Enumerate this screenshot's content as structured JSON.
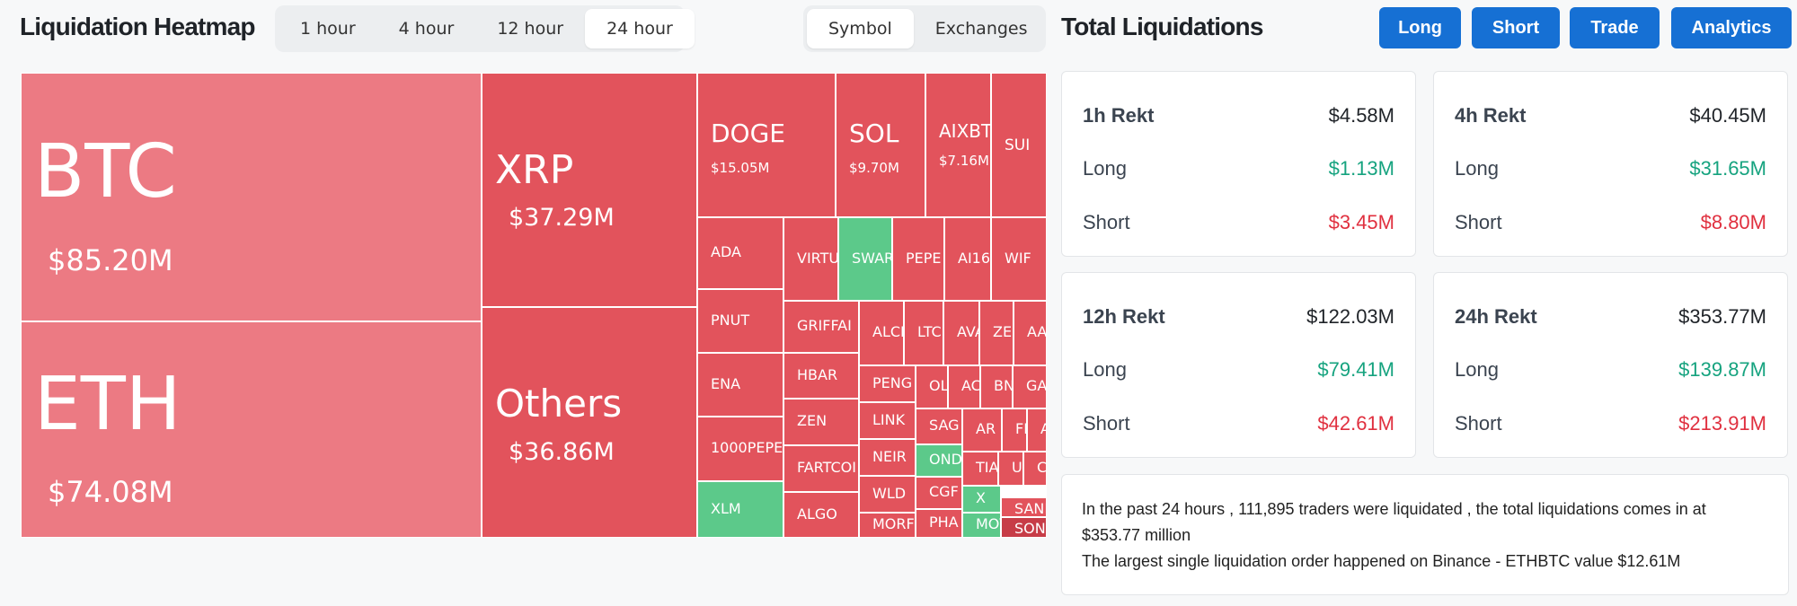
{
  "heatmap": {
    "title": "Liquidation Heatmap",
    "time_options": [
      "1 hour",
      "4 hour",
      "12 hour",
      "24 hour"
    ],
    "active_time": "24 hour",
    "view_options": [
      "Symbol",
      "Exchanges"
    ],
    "active_view": "Symbol"
  },
  "colors": {
    "loss": "#e2535c",
    "big": "#ec7a83",
    "gain": "#5cc98a",
    "button": "#1670d4",
    "long": "#16a37f",
    "short": "#e0303f"
  },
  "treemap": {
    "big": [
      {
        "symbol": "BTC",
        "value": "$85.20M"
      },
      {
        "symbol": "ETH",
        "value": "$74.08M"
      },
      {
        "symbol": "XRP",
        "value": "$37.29M"
      },
      {
        "symbol": "Others",
        "value": "$36.86M"
      }
    ],
    "medium": [
      {
        "symbol": "DOGE",
        "value": "$15.05M"
      },
      {
        "symbol": "SOL",
        "value": "$9.70M"
      },
      {
        "symbol": "AIXBT",
        "value": "$7.16M"
      },
      {
        "symbol": "SUI",
        "value": ""
      }
    ],
    "small": [
      "ADA",
      "VIRTU",
      "SWAR",
      "PEPE",
      "AI16",
      "WIF",
      "PNUT",
      "GRIFFAI",
      "ALCI",
      "LTC",
      "AVA",
      "ZE",
      "AA",
      "ENA",
      "HBAR",
      "PENG",
      "OL",
      "AC",
      "BN",
      "GA",
      "ZEN",
      "LINK",
      "SAG",
      "AR",
      "FI",
      "AC",
      "1000PEPE",
      "FARTCOI",
      "NEIR",
      "OND",
      "TIA",
      "U",
      "C",
      "WLD",
      "CGF",
      "X",
      "SAND",
      "XLM",
      "ALGO",
      "MORF",
      "PHA",
      "MOV",
      "SON"
    ]
  },
  "totals": {
    "title": "Total Liquidations",
    "buttons": [
      "Long",
      "Short",
      "Trade",
      "Analytics"
    ],
    "long_label": "Long",
    "short_label": "Short",
    "cards": [
      {
        "label": "1h Rekt",
        "total": "$4.58M",
        "long": "$1.13M",
        "short": "$3.45M"
      },
      {
        "label": "4h Rekt",
        "total": "$40.45M",
        "long": "$31.65M",
        "short": "$8.80M"
      },
      {
        "label": "12h Rekt",
        "total": "$122.03M",
        "long": "$79.41M",
        "short": "$42.61M"
      },
      {
        "label": "24h Rekt",
        "total": "$353.77M",
        "long": "$139.87M",
        "short": "$213.91M"
      }
    ],
    "summary_line1": "In the past 24 hours , 111,895 traders were liquidated , the total liquidations comes in at $353.77 million",
    "summary_line2": "The largest single liquidation order happened on Binance - ETHBTC value $12.61M"
  }
}
